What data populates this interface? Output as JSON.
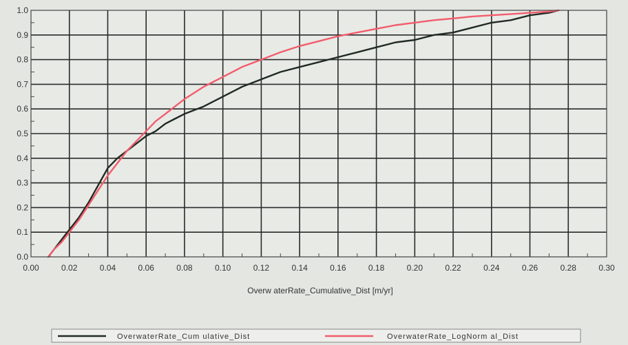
{
  "chart_data": {
    "type": "line",
    "xlabel": "Overw aterRate_Cumulative_Dist [m/yr]",
    "ylabel": "",
    "xlim": [
      0.0,
      0.3
    ],
    "ylim": [
      0.0,
      1.0
    ],
    "x_ticks": [
      "0.00",
      "0.02",
      "0.04",
      "0.06",
      "0.08",
      "0.10",
      "0.12",
      "0.14",
      "0.16",
      "0.18",
      "0.20",
      "0.22",
      "0.24",
      "0.26",
      "0.28",
      "0.30"
    ],
    "y_ticks": [
      "0.0",
      "0.1",
      "0.2",
      "0.3",
      "0.4",
      "0.5",
      "0.6",
      "0.7",
      "0.8",
      "0.9",
      "1.0"
    ],
    "grid": true,
    "legend_position": "bottom",
    "series": [
      {
        "name": "OverwaterRate_Cum ulative_Dist",
        "color": "#1f2a22",
        "x": [
          0.009,
          0.012,
          0.016,
          0.02,
          0.025,
          0.03,
          0.035,
          0.04,
          0.045,
          0.05,
          0.055,
          0.06,
          0.065,
          0.07,
          0.075,
          0.08,
          0.09,
          0.1,
          0.11,
          0.12,
          0.13,
          0.14,
          0.15,
          0.16,
          0.17,
          0.18,
          0.19,
          0.2,
          0.21,
          0.22,
          0.23,
          0.24,
          0.25,
          0.26,
          0.27,
          0.275
        ],
        "y": [
          0.0,
          0.03,
          0.07,
          0.11,
          0.16,
          0.22,
          0.29,
          0.36,
          0.4,
          0.43,
          0.46,
          0.49,
          0.51,
          0.54,
          0.56,
          0.58,
          0.61,
          0.65,
          0.69,
          0.72,
          0.75,
          0.77,
          0.79,
          0.81,
          0.83,
          0.85,
          0.87,
          0.88,
          0.9,
          0.91,
          0.93,
          0.95,
          0.96,
          0.98,
          0.99,
          1.0
        ]
      },
      {
        "name": "OverwaterRate_LogNorm al_Dist",
        "color": "#f25c6c",
        "x": [
          0.009,
          0.012,
          0.016,
          0.02,
          0.025,
          0.03,
          0.035,
          0.04,
          0.045,
          0.05,
          0.055,
          0.06,
          0.065,
          0.07,
          0.08,
          0.09,
          0.1,
          0.11,
          0.12,
          0.13,
          0.14,
          0.15,
          0.16,
          0.17,
          0.18,
          0.19,
          0.2,
          0.21,
          0.22,
          0.23,
          0.24,
          0.25,
          0.26,
          0.27,
          0.275
        ],
        "y": [
          0.0,
          0.03,
          0.06,
          0.1,
          0.15,
          0.21,
          0.27,
          0.33,
          0.38,
          0.43,
          0.47,
          0.51,
          0.55,
          0.58,
          0.64,
          0.69,
          0.73,
          0.77,
          0.8,
          0.83,
          0.855,
          0.875,
          0.895,
          0.91,
          0.925,
          0.94,
          0.95,
          0.96,
          0.967,
          0.975,
          0.98,
          0.985,
          0.99,
          0.995,
          1.0
        ]
      }
    ]
  }
}
